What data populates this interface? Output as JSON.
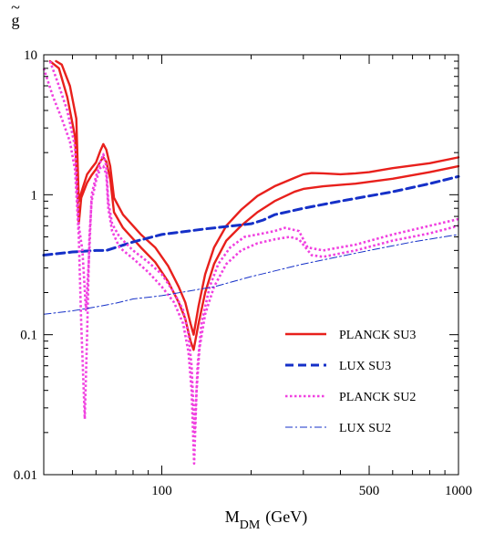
{
  "chart_data": {
    "type": "line",
    "title": "",
    "xlabel": "M",
    "xlabel_sub": "DM",
    "xlabel_unit": "(GeV)",
    "ylabel": "g",
    "ylabel_accent": "~",
    "x_scale": "log",
    "y_scale": "log",
    "xlim": [
      40,
      1000
    ],
    "ylim": [
      0.01,
      10
    ],
    "grid": false,
    "legend_position": "center-right",
    "x_ticks": [
      {
        "value": 100,
        "label": "100"
      },
      {
        "value": 500,
        "label": "500"
      },
      {
        "value": 1000,
        "label": "1000"
      }
    ],
    "y_ticks": [
      {
        "value": 0.01,
        "label": "0.01"
      },
      {
        "value": 0.1,
        "label": "0.1"
      },
      {
        "value": 1,
        "label": "1"
      },
      {
        "value": 10,
        "label": "10"
      }
    ],
    "series": [
      {
        "name": "PLANCK SU3",
        "color": "#e8201c",
        "style": "solid",
        "lines": [
          [
            [
              42,
              9
            ],
            [
              45,
              8
            ],
            [
              48,
              5
            ],
            [
              51,
              2.6
            ],
            [
              52.5,
              0.62
            ],
            [
              53.5,
              0.95
            ],
            [
              56,
              1.22
            ],
            [
              58,
              1.38
            ],
            [
              60,
              1.52
            ],
            [
              62,
              1.72
            ],
            [
              63.5,
              1.85
            ],
            [
              65,
              1.72
            ],
            [
              67,
              1.3
            ],
            [
              69,
              0.75
            ],
            [
              74,
              0.58
            ],
            [
              85,
              0.42
            ],
            [
              95,
              0.33
            ],
            [
              105,
              0.24
            ],
            [
              114,
              0.17
            ],
            [
              120,
              0.13
            ],
            [
              125,
              0.09
            ],
            [
              128,
              0.078
            ],
            [
              133,
              0.12
            ],
            [
              140,
              0.2
            ],
            [
              150,
              0.32
            ],
            [
              165,
              0.47
            ],
            [
              185,
              0.6
            ],
            [
              210,
              0.75
            ],
            [
              240,
              0.9
            ],
            [
              280,
              1.05
            ],
            [
              300,
              1.1
            ],
            [
              350,
              1.15
            ],
            [
              450,
              1.2
            ],
            [
              600,
              1.3
            ],
            [
              800,
              1.45
            ],
            [
              1000,
              1.6
            ]
          ],
          [
            [
              44,
              9
            ],
            [
              46,
              8.5
            ],
            [
              49,
              6
            ],
            [
              51.5,
              3.5
            ],
            [
              52.5,
              0.9
            ],
            [
              54,
              1.1
            ],
            [
              56,
              1.4
            ],
            [
              58,
              1.55
            ],
            [
              60,
              1.7
            ],
            [
              62,
              2.05
            ],
            [
              63.5,
              2.3
            ],
            [
              65,
              2.1
            ],
            [
              67,
              1.6
            ],
            [
              69,
              0.95
            ],
            [
              74,
              0.72
            ],
            [
              85,
              0.52
            ],
            [
              95,
              0.42
            ],
            [
              105,
              0.31
            ],
            [
              114,
              0.22
            ],
            [
              120,
              0.17
            ],
            [
              125,
              0.12
            ],
            [
              128,
              0.1
            ],
            [
              133,
              0.16
            ],
            [
              140,
              0.27
            ],
            [
              150,
              0.42
            ],
            [
              165,
              0.6
            ],
            [
              185,
              0.78
            ],
            [
              210,
              0.98
            ],
            [
              240,
              1.15
            ],
            [
              280,
              1.32
            ],
            [
              300,
              1.4
            ],
            [
              320,
              1.43
            ],
            [
              350,
              1.42
            ],
            [
              400,
              1.4
            ],
            [
              450,
              1.42
            ],
            [
              500,
              1.45
            ],
            [
              600,
              1.55
            ],
            [
              800,
              1.68
            ],
            [
              1000,
              1.85
            ]
          ]
        ]
      },
      {
        "name": "LUX SU3",
        "color": "#1530c8",
        "style": "dashed",
        "lines": [
          [
            [
              40,
              0.37
            ],
            [
              50,
              0.39
            ],
            [
              60,
              0.4
            ],
            [
              65,
              0.4
            ],
            [
              70,
              0.42
            ],
            [
              80,
              0.46
            ],
            [
              100,
              0.52
            ],
            [
              140,
              0.57
            ],
            [
              200,
              0.62
            ],
            [
              220,
              0.66
            ],
            [
              240,
              0.72
            ],
            [
              300,
              0.8
            ],
            [
              400,
              0.9
            ],
            [
              600,
              1.05
            ],
            [
              800,
              1.2
            ],
            [
              1000,
              1.35
            ]
          ]
        ]
      },
      {
        "name": "PLANCK SU2",
        "color": "#f040e0",
        "style": "dotted",
        "lines": [
          [
            [
              40,
              8
            ],
            [
              43,
              5
            ],
            [
              46,
              3.5
            ],
            [
              49,
              2.4
            ],
            [
              51,
              1.5
            ],
            [
              52.5,
              0.5
            ],
            [
              53.5,
              0.12
            ],
            [
              55,
              0.025
            ],
            [
              56,
              0.1
            ],
            [
              57,
              0.5
            ],
            [
              58,
              0.9
            ],
            [
              60,
              1.25
            ],
            [
              62,
              1.55
            ],
            [
              63.5,
              1.6
            ],
            [
              65,
              1.4
            ],
            [
              66,
              0.8
            ],
            [
              68,
              0.55
            ],
            [
              72,
              0.42
            ],
            [
              80,
              0.35
            ],
            [
              90,
              0.28
            ],
            [
              100,
              0.22
            ],
            [
              110,
              0.17
            ],
            [
              118,
              0.12
            ],
            [
              123,
              0.075
            ],
            [
              126,
              0.04
            ],
            [
              128.5,
              0.012
            ],
            [
              131,
              0.04
            ],
            [
              134,
              0.08
            ],
            [
              140,
              0.14
            ],
            [
              150,
              0.22
            ],
            [
              165,
              0.32
            ],
            [
              185,
              0.4
            ],
            [
              210,
              0.45
            ],
            [
              240,
              0.48
            ],
            [
              270,
              0.5
            ],
            [
              290,
              0.48
            ],
            [
              320,
              0.37
            ],
            [
              350,
              0.36
            ],
            [
              450,
              0.4
            ],
            [
              600,
              0.47
            ],
            [
              800,
              0.53
            ],
            [
              1000,
              0.6
            ]
          ],
          [
            [
              42,
              9
            ],
            [
              45,
              6
            ],
            [
              48,
              4
            ],
            [
              51,
              2.2
            ],
            [
              52.5,
              0.6
            ],
            [
              54,
              0.4
            ],
            [
              55.5,
              0.15
            ],
            [
              57,
              0.4
            ],
            [
              58,
              1.0
            ],
            [
              60,
              1.35
            ],
            [
              62,
              1.7
            ],
            [
              63.5,
              1.95
            ],
            [
              65,
              1.6
            ],
            [
              66,
              0.9
            ],
            [
              68,
              0.62
            ],
            [
              72,
              0.5
            ],
            [
              80,
              0.4
            ],
            [
              90,
              0.33
            ],
            [
              100,
              0.27
            ],
            [
              110,
              0.2
            ],
            [
              118,
              0.15
            ],
            [
              123,
              0.1
            ],
            [
              126,
              0.06
            ],
            [
              129,
              0.02
            ],
            [
              132,
              0.06
            ],
            [
              136,
              0.12
            ],
            [
              145,
              0.22
            ],
            [
              155,
              0.32
            ],
            [
              170,
              0.42
            ],
            [
              190,
              0.5
            ],
            [
              210,
              0.52
            ],
            [
              240,
              0.55
            ],
            [
              260,
              0.58
            ],
            [
              290,
              0.55
            ],
            [
              310,
              0.42
            ],
            [
              350,
              0.4
            ],
            [
              450,
              0.44
            ],
            [
              600,
              0.52
            ],
            [
              800,
              0.6
            ],
            [
              1000,
              0.67
            ]
          ]
        ]
      },
      {
        "name": "LUX SU2",
        "color": "#1530c8",
        "style": "dashdot",
        "lines": [
          [
            [
              40,
              0.14
            ],
            [
              50,
              0.148
            ],
            [
              60,
              0.158
            ],
            [
              70,
              0.168
            ],
            [
              80,
              0.18
            ],
            [
              100,
              0.19
            ],
            [
              150,
              0.22
            ],
            [
              200,
              0.26
            ],
            [
              300,
              0.32
            ],
            [
              500,
              0.4
            ],
            [
              700,
              0.46
            ],
            [
              1000,
              0.52
            ]
          ]
        ]
      }
    ]
  }
}
